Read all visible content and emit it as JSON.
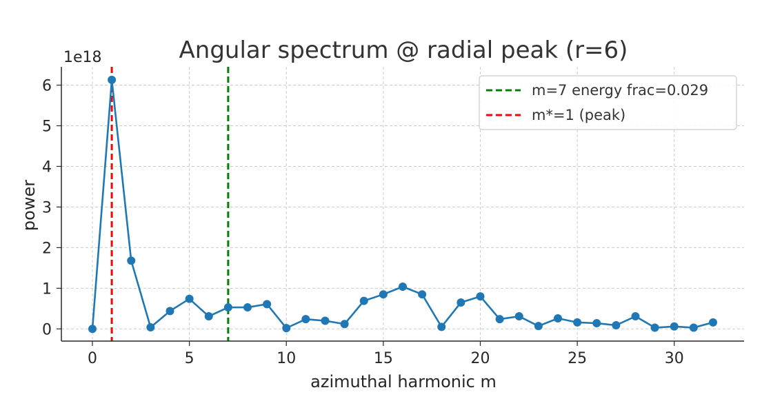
{
  "chart_data": {
    "type": "line",
    "title": "Angular spectrum @ radial peak (r=6)",
    "xlabel": "azimuthal harmonic m",
    "ylabel": "power",
    "y_multiplier_label": "1e18",
    "xlim": [
      -1.6,
      33.6
    ],
    "ylim": [
      -0.3,
      6.45
    ],
    "x_ticks": [
      0,
      5,
      10,
      15,
      20,
      25,
      30
    ],
    "y_ticks": [
      0,
      1,
      2,
      3,
      4,
      5,
      6
    ],
    "grid": true,
    "legend_position": "top-right",
    "series": [
      {
        "type": "line-marker",
        "color": "#1f77b4",
        "x": [
          0,
          1,
          2,
          3,
          4,
          5,
          6,
          7,
          8,
          9,
          10,
          11,
          12,
          13,
          14,
          15,
          16,
          17,
          18,
          19,
          20,
          21,
          22,
          23,
          24,
          25,
          26,
          27,
          28,
          29,
          30,
          31,
          32
        ],
        "y": [
          0.0,
          6.13,
          1.68,
          0.04,
          0.44,
          0.74,
          0.31,
          0.53,
          0.53,
          0.61,
          0.02,
          0.24,
          0.2,
          0.12,
          0.69,
          0.85,
          1.04,
          0.85,
          0.05,
          0.65,
          0.8,
          0.24,
          0.31,
          0.07,
          0.26,
          0.16,
          0.14,
          0.09,
          0.31,
          0.03,
          0.06,
          0.03,
          0.16
        ]
      }
    ],
    "vlines": [
      {
        "x": 7,
        "color": "#008000",
        "style": "dashed",
        "label": "m=7 energy frac=0.029"
      },
      {
        "x": 1,
        "color": "#ff0000",
        "style": "dashed",
        "label": "m*=1 (peak)"
      }
    ]
  }
}
